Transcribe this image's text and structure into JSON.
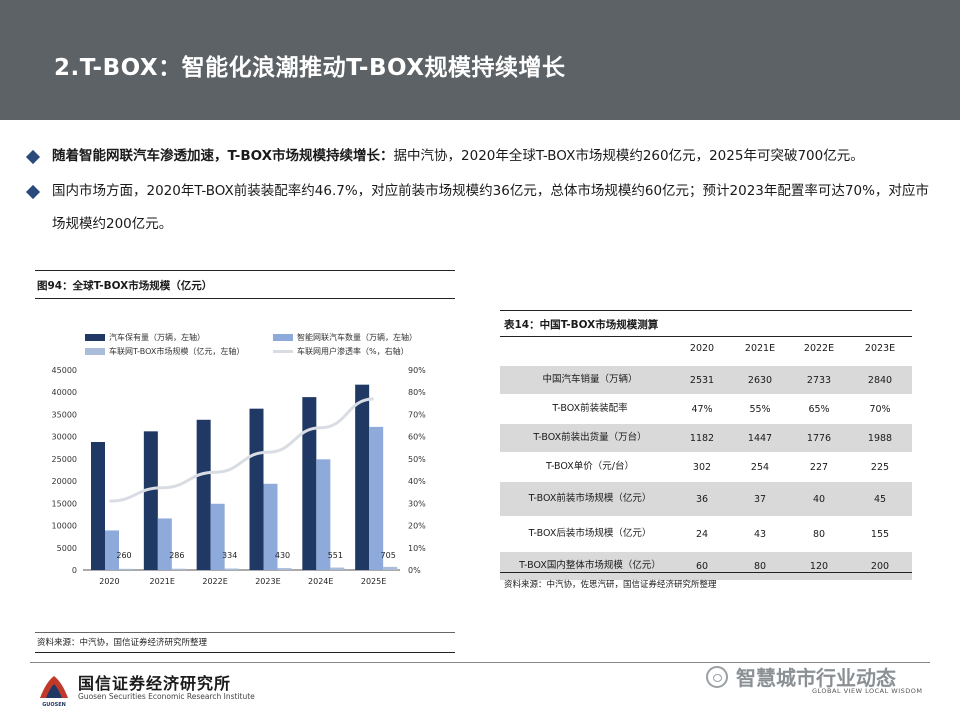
{
  "header": {
    "title": "2.T-BOX：智能化浪潮推动T-BOX规模持续增长"
  },
  "bullets": [
    {
      "bold": "随着智能网联汽车渗透加速，T-BOX市场规模持续增长：",
      "text": "据中汽协，2020年全球T-BOX市场规模约260亿元，2025年可突破700亿元。"
    },
    {
      "bold": "",
      "text": "国内市场方面，2020年T-BOX前装装配率约46.7%，对应前装市场规模约36亿元，总体市场规模约60亿元；预计2023年配置率可达70%，对应市场规模约200亿元。"
    }
  ],
  "figure": {
    "caption": "图94：全球T-BOX市场规模（亿元）",
    "source": "资料来源：中汽协，国信证券经济研究所整理"
  },
  "chart_data": {
    "type": "bar",
    "categories": [
      "2020",
      "2021E",
      "2022E",
      "2023E",
      "2024E",
      "2025E"
    ],
    "series": [
      {
        "name": "汽车保有量（万辆，左轴）",
        "axis": "left",
        "kind": "bar",
        "values": [
          28800,
          31200,
          33800,
          36300,
          38900,
          41700
        ]
      },
      {
        "name": "智能网联汽车数量（万辆，左轴）",
        "axis": "left",
        "kind": "bar",
        "values": [
          8900,
          11600,
          14900,
          19400,
          24900,
          32200
        ]
      },
      {
        "name": "车联网T-BOX市场规模（亿元，左轴）",
        "axis": "left",
        "kind": "bar",
        "values": [
          260,
          286,
          334,
          430,
          551,
          705
        ]
      },
      {
        "name": "车联网用户渗透率（%，右轴）",
        "axis": "right",
        "kind": "line",
        "values": [
          31,
          37,
          44,
          53,
          64,
          77
        ]
      }
    ],
    "data_labels": [
      "260",
      "286",
      "334",
      "430",
      "551",
      "705"
    ],
    "yticks_left": [
      "0",
      "5000",
      "10000",
      "15000",
      "20000",
      "25000",
      "30000",
      "35000",
      "40000",
      "45000"
    ],
    "yticks_right": [
      "0%",
      "10%",
      "20%",
      "30%",
      "40%",
      "50%",
      "60%",
      "70%",
      "80%",
      "90%"
    ],
    "ylim_left": [
      0,
      45000
    ],
    "ylim_right": [
      0,
      90
    ],
    "legend_position": "top",
    "colors": {
      "vehicles": "#1f3864",
      "connected": "#8eaadb",
      "tbox": "#a9bdd9",
      "penetration": "#d9dde3"
    }
  },
  "table": {
    "caption": "表14：中国T-BOX市场规模测算",
    "columns": [
      "2020",
      "2021E",
      "2022E",
      "2023E"
    ],
    "rows": [
      {
        "label": "中国汽车销量（万辆）",
        "values": [
          "2531",
          "2630",
          "2733",
          "2840"
        ],
        "shaded": true
      },
      {
        "label": "T-BOX前装装配率",
        "values": [
          "47%",
          "55%",
          "65%",
          "70%"
        ],
        "shaded": false
      },
      {
        "label": "T-BOX前装出货量（万台）",
        "values": [
          "1182",
          "1447",
          "1776",
          "1988"
        ],
        "shaded": true
      },
      {
        "label": "T-BOX单价（元/台）",
        "values": [
          "302",
          "254",
          "227",
          "225"
        ],
        "shaded": false
      },
      {
        "label": "T-BOX前装市场规模（亿元）",
        "values": [
          "36",
          "37",
          "40",
          "45"
        ],
        "shaded": true
      },
      {
        "label": "T-BOX后装市场规模（亿元）",
        "values": [
          "24",
          "43",
          "80",
          "155"
        ],
        "shaded": false
      },
      {
        "label": "T-BOX国内整体市场规模（亿元）",
        "values": [
          "60",
          "80",
          "120",
          "200"
        ],
        "shaded": true
      }
    ],
    "source": "资料来源：中汽协，佐思汽研，国信证券经济研究所整理"
  },
  "footer": {
    "logo_cn": "国信证券经济研究所",
    "logo_en": "Guosen Securities Economic Research Institute",
    "logo_badge": "GUOSEN",
    "right_text": "GLOBAL VIEW   LOCAL WISDOM",
    "watermark": "智慧城市行业动态"
  }
}
